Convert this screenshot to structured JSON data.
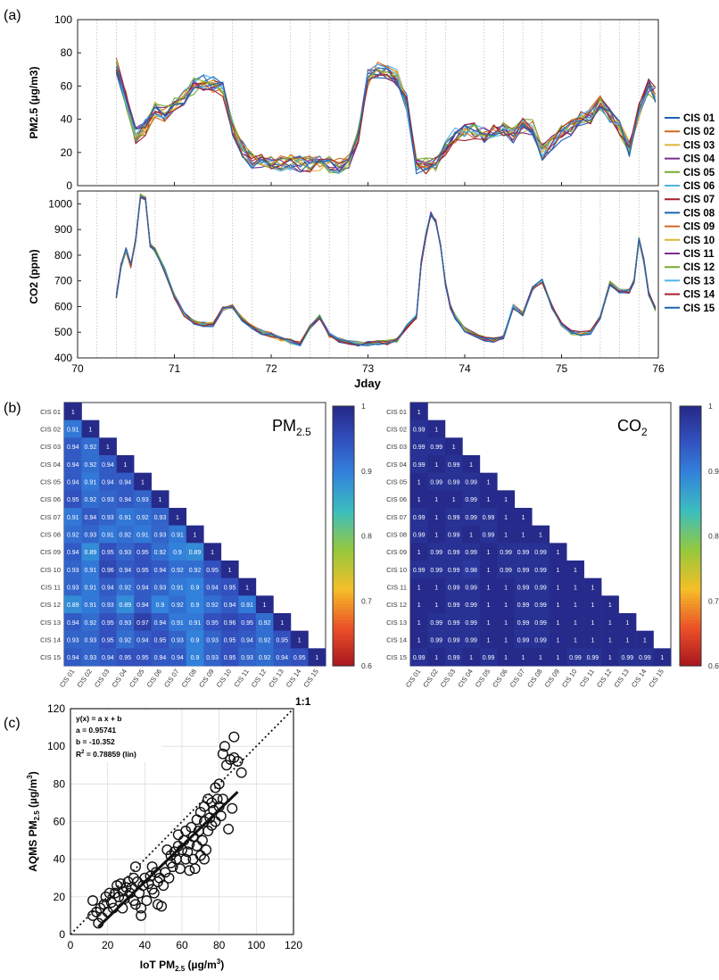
{
  "panels": {
    "a": "(a)",
    "b": "(b)",
    "c": "(c)"
  },
  "chart_data": [
    {
      "id": "pm25-timeseries",
      "type": "line",
      "ylabel": "PM2.5 (µg/m3)",
      "xlim": [
        70,
        76
      ],
      "ylim": [
        0,
        100
      ],
      "xticks": [
        70,
        71,
        72,
        73,
        74,
        75,
        76
      ],
      "yticks": [
        0,
        20,
        40,
        60,
        80,
        100
      ],
      "x": [
        70.4,
        70.5,
        70.6,
        70.7,
        70.8,
        70.9,
        71.0,
        71.1,
        71.2,
        71.3,
        71.4,
        71.5,
        71.6,
        71.7,
        71.8,
        71.9,
        72.0,
        72.1,
        72.2,
        72.3,
        72.4,
        72.5,
        72.6,
        72.7,
        72.8,
        72.9,
        73.0,
        73.1,
        73.2,
        73.3,
        73.4,
        73.5,
        73.6,
        73.7,
        73.8,
        73.9,
        74.0,
        74.1,
        74.2,
        74.3,
        74.4,
        74.5,
        74.6,
        74.7,
        74.8,
        74.9,
        75.0,
        75.1,
        75.2,
        75.3,
        75.4,
        75.5,
        75.6,
        75.7,
        75.8,
        75.9,
        75.97
      ],
      "base": [
        72,
        52,
        30,
        35,
        46,
        43,
        48,
        53,
        60,
        62,
        61,
        58,
        35,
        22,
        15,
        14,
        13,
        13,
        14,
        13,
        13,
        14,
        13,
        12,
        14,
        30,
        65,
        70,
        68,
        65,
        50,
        12,
        12,
        14,
        22,
        30,
        32,
        33,
        30,
        32,
        35,
        30,
        36,
        35,
        20,
        25,
        32,
        35,
        40,
        42,
        50,
        42,
        35,
        22,
        45,
        60,
        55
      ],
      "series_names": [
        "CIS 01",
        "CIS 02",
        "CIS 03",
        "CIS 04",
        "CIS 05",
        "CIS 06",
        "CIS 07",
        "CIS 08",
        "CIS 09",
        "CIS 10",
        "CIS 11",
        "CIS 12",
        "CIS 13",
        "CIS 14",
        "CIS 15"
      ]
    },
    {
      "id": "co2-timeseries",
      "type": "line",
      "ylabel": "CO2 (ppm)",
      "xlabel": "Jday",
      "xlim": [
        70,
        76
      ],
      "ylim": [
        400,
        1050
      ],
      "xticks": [
        70,
        71,
        72,
        73,
        74,
        75,
        76
      ],
      "yticks": [
        400,
        500,
        600,
        700,
        800,
        900,
        1000
      ],
      "x": [
        70.4,
        70.45,
        70.5,
        70.55,
        70.6,
        70.65,
        70.7,
        70.75,
        70.8,
        70.9,
        71.0,
        71.1,
        71.2,
        71.3,
        71.4,
        71.5,
        71.6,
        71.7,
        71.8,
        71.9,
        72.0,
        72.1,
        72.2,
        72.3,
        72.4,
        72.5,
        72.6,
        72.7,
        72.8,
        72.9,
        73.0,
        73.1,
        73.2,
        73.3,
        73.4,
        73.5,
        73.55,
        73.6,
        73.65,
        73.7,
        73.75,
        73.8,
        73.85,
        73.9,
        74.0,
        74.1,
        74.2,
        74.3,
        74.4,
        74.5,
        74.6,
        74.7,
        74.8,
        74.9,
        75.0,
        75.1,
        75.2,
        75.3,
        75.4,
        75.5,
        75.6,
        75.7,
        75.75,
        75.8,
        75.85,
        75.9,
        75.97
      ],
      "base": [
        640,
        760,
        820,
        760,
        860,
        1030,
        1020,
        840,
        820,
        740,
        640,
        570,
        540,
        530,
        530,
        590,
        600,
        550,
        520,
        500,
        490,
        475,
        465,
        455,
        520,
        560,
        490,
        470,
        460,
        455,
        455,
        460,
        460,
        470,
        520,
        560,
        770,
        880,
        960,
        930,
        840,
        690,
        600,
        560,
        510,
        490,
        475,
        470,
        480,
        600,
        570,
        670,
        700,
        600,
        530,
        500,
        495,
        500,
        560,
        690,
        660,
        660,
        700,
        860,
        780,
        650,
        590
      ],
      "series_names": [
        "CIS 01",
        "CIS 02",
        "CIS 03",
        "CIS 04",
        "CIS 05",
        "CIS 06",
        "CIS 07",
        "CIS 08",
        "CIS 09",
        "CIS 10",
        "CIS 11",
        "CIS 12",
        "CIS 13",
        "CIS 14",
        "CIS 15"
      ]
    },
    {
      "id": "pm25-correlation",
      "type": "heatmap",
      "title": "PM",
      "title_sub": "2.5",
      "labels": [
        "CIS 01",
        "CIS 02",
        "CIS 03",
        "CIS 04",
        "CIS 05",
        "CIS 06",
        "CIS 07",
        "CIS 08",
        "CIS 09",
        "CIS 10",
        "CIS 11",
        "CIS 12",
        "CIS 13",
        "CIS 14",
        "CIS 15"
      ],
      "rows": [
        [
          "1"
        ],
        [
          "0.91",
          "1"
        ],
        [
          "0.94",
          "0.92",
          "1"
        ],
        [
          "0.94",
          "0.92",
          "0.94",
          "1"
        ],
        [
          "0.94",
          "0.91",
          "0.94",
          "0.94",
          "1"
        ],
        [
          "0.95",
          "0.92",
          "0.93",
          "0.94",
          "0.93",
          "1"
        ],
        [
          "0.91",
          "0.94",
          "0.93",
          "0.91",
          "0.92",
          "0.93",
          "1"
        ],
        [
          "0.92",
          "0.93",
          "0.91",
          "0.92",
          "0.91",
          "0.93",
          "0.91",
          "1"
        ],
        [
          "0.94",
          "0.89",
          "0.95",
          "0.93",
          "0.95",
          "0.92",
          "0.9",
          "0.89",
          "1"
        ],
        [
          "0.93",
          "0.91",
          "0.96",
          "0.94",
          "0.95",
          "0.94",
          "0.92",
          "0.92",
          "0.95",
          "1"
        ],
        [
          "0.93",
          "0.91",
          "0.94",
          "0.92",
          "0.94",
          "0.93",
          "0.91",
          "0.9",
          "0.94",
          "0.95",
          "1"
        ],
        [
          "0.89",
          "0.91",
          "0.93",
          "0.89",
          "0.94",
          "0.9",
          "0.92",
          "0.9",
          "0.92",
          "0.94",
          "0.91",
          "1"
        ],
        [
          "0.94",
          "0.92",
          "0.95",
          "0.93",
          "0.97",
          "0.94",
          "0.91",
          "0.91",
          "0.95",
          "0.96",
          "0.95",
          "0.92",
          "1"
        ],
        [
          "0.93",
          "0.93",
          "0.95",
          "0.92",
          "0.94",
          "0.95",
          "0.93",
          "0.9",
          "0.93",
          "0.95",
          "0.94",
          "0.92",
          "0.95",
          "1"
        ],
        [
          "0.94",
          "0.93",
          "0.94",
          "0.95",
          "0.95",
          "0.94",
          "0.94",
          "0.9",
          "0.93",
          "0.95",
          "0.93",
          "0.92",
          "0.94",
          "0.95",
          "1"
        ]
      ],
      "colorbar_ticks": [
        "1",
        "0.9",
        "0.8",
        "0.7",
        "0.6"
      ],
      "vmin": 0.6,
      "vmax": 1
    },
    {
      "id": "co2-correlation",
      "type": "heatmap",
      "title": "CO",
      "title_sub": "2",
      "labels": [
        "CIS 01",
        "CIS 02",
        "CIS 03",
        "CIS 04",
        "CIS 05",
        "CIS 06",
        "CIS 07",
        "CIS 08",
        "CIS 09",
        "CIS 10",
        "CIS 11",
        "CIS 12",
        "CIS 13",
        "CIS 14",
        "CIS 15"
      ],
      "rows": [
        [
          "1"
        ],
        [
          "0.99",
          "1"
        ],
        [
          "0.99",
          "0.99",
          "1"
        ],
        [
          "0.99",
          "1",
          "0.99",
          "1"
        ],
        [
          "1",
          "0.99",
          "0.99",
          "0.99",
          "1"
        ],
        [
          "1",
          "1",
          "1",
          "0.99",
          "1",
          "1"
        ],
        [
          "0.99",
          "1",
          "0.99",
          "0.99",
          "0.99",
          "1",
          "1"
        ],
        [
          "0.99",
          "1",
          "0.99",
          "1",
          "0.99",
          "1",
          "1",
          "1"
        ],
        [
          "1",
          "0.99",
          "0.99",
          "0.99",
          "1",
          "0.99",
          "0.99",
          "0.99",
          "1"
        ],
        [
          "0.99",
          "0.99",
          "0.99",
          "0.98",
          "1",
          "0.99",
          "0.99",
          "0.99",
          "1",
          "1"
        ],
        [
          "1",
          "1",
          "0.99",
          "0.99",
          "1",
          "1",
          "0.99",
          "0.99",
          "1",
          "1",
          "1"
        ],
        [
          "1",
          "1",
          "0.99",
          "0.99",
          "1",
          "1",
          "0.99",
          "0.99",
          "1",
          "1",
          "1",
          "1"
        ],
        [
          "1",
          "0.99",
          "0.99",
          "0.99",
          "1",
          "1",
          "0.99",
          "0.99",
          "1",
          "1",
          "1",
          "1",
          "1"
        ],
        [
          "1",
          "0.99",
          "0.99",
          "0.99",
          "1",
          "1",
          "0.99",
          "0.99",
          "1",
          "1",
          "1",
          "1",
          "1",
          "1"
        ],
        [
          "0.99",
          "1",
          "0.99",
          "1",
          "0.99",
          "1",
          "1",
          "1",
          "1",
          "0.99",
          "0.99",
          "1",
          "0.99",
          "0.99",
          "1"
        ]
      ],
      "colorbar_ticks": [
        "1",
        "0.9",
        "0.8",
        "0.7",
        "0.6"
      ],
      "vmin": 0.6,
      "vmax": 1
    },
    {
      "id": "pm25-scatter",
      "type": "scatter",
      "xlabel": "IoT PM",
      "xlabel_sub": "2.5",
      "xlabel_unit": " (µg/m",
      "ylabel": "AQMS PM",
      "ylabel_sub": "2.5",
      "ylabel_unit": " (µg/m",
      "unit_sup": "3",
      "xlim": [
        0,
        120
      ],
      "ylim": [
        0,
        120
      ],
      "xticks": [
        0,
        20,
        40,
        60,
        80,
        100,
        120
      ],
      "yticks": [
        0,
        20,
        40,
        60,
        80,
        100,
        120
      ],
      "one_to_one_label": "1:1",
      "fit": {
        "a": 0.95741,
        "b": -10.352,
        "r2": 0.78859
      },
      "fit_range": [
        15,
        90
      ],
      "annotation": [
        "y(x) = a x + b",
        "a = 0.95741",
        "b = -10.352",
        "R",
        "2",
        " = 0.78859  (lin)"
      ],
      "points": [
        [
          12,
          10
        ],
        [
          12,
          18
        ],
        [
          14,
          12
        ],
        [
          15,
          6
        ],
        [
          16,
          14
        ],
        [
          17,
          9
        ],
        [
          18,
          16
        ],
        [
          19,
          20
        ],
        [
          20,
          12
        ],
        [
          21,
          22
        ],
        [
          22,
          17
        ],
        [
          23,
          14
        ],
        [
          24,
          22
        ],
        [
          25,
          26
        ],
        [
          26,
          20
        ],
        [
          27,
          27
        ],
        [
          28,
          23
        ],
        [
          29,
          19
        ],
        [
          30,
          25
        ],
        [
          31,
          28
        ],
        [
          32,
          22
        ],
        [
          33,
          25
        ],
        [
          34,
          30
        ],
        [
          35,
          36
        ],
        [
          35,
          16
        ],
        [
          36,
          28
        ],
        [
          37,
          22
        ],
        [
          38,
          14
        ],
        [
          38,
          10
        ],
        [
          39,
          26
        ],
        [
          40,
          30
        ],
        [
          41,
          18
        ],
        [
          42,
          27
        ],
        [
          43,
          31
        ],
        [
          44,
          24
        ],
        [
          45,
          22
        ],
        [
          46,
          33
        ],
        [
          47,
          16
        ],
        [
          47,
          28
        ],
        [
          48,
          30
        ],
        [
          49,
          15
        ],
        [
          50,
          26
        ],
        [
          51,
          33
        ],
        [
          52,
          45
        ],
        [
          53,
          30
        ],
        [
          54,
          42
        ],
        [
          55,
          36
        ],
        [
          56,
          44
        ],
        [
          57,
          40
        ],
        [
          58,
          47
        ],
        [
          58,
          53
        ],
        [
          59,
          35
        ],
        [
          60,
          45
        ],
        [
          61,
          50
        ],
        [
          62,
          40
        ],
        [
          62,
          55
        ],
        [
          63,
          44
        ],
        [
          64,
          48
        ],
        [
          65,
          57
        ],
        [
          66,
          40
        ],
        [
          66,
          52
        ],
        [
          67,
          35
        ],
        [
          68,
          47
        ],
        [
          68,
          61
        ],
        [
          69,
          55
        ],
        [
          70,
          42
        ],
        [
          70,
          65
        ],
        [
          71,
          50
        ],
        [
          72,
          60
        ],
        [
          72,
          68
        ],
        [
          73,
          45
        ],
        [
          74,
          55
        ],
        [
          74,
          72
        ],
        [
          75,
          62
        ],
        [
          76,
          58
        ],
        [
          76,
          70
        ],
        [
          77,
          66
        ],
        [
          78,
          60
        ],
        [
          78,
          78
        ],
        [
          79,
          72
        ],
        [
          80,
          68
        ],
        [
          80,
          80
        ],
        [
          81,
          63
        ],
        [
          82,
          72
        ],
        [
          82,
          96
        ],
        [
          83,
          100
        ],
        [
          84,
          90
        ],
        [
          85,
          56
        ],
        [
          86,
          93
        ],
        [
          87,
          67
        ],
        [
          88,
          105
        ],
        [
          88,
          94
        ],
        [
          90,
          92
        ],
        [
          92,
          86
        ],
        [
          34,
          18
        ],
        [
          44,
          36
        ],
        [
          54,
          38
        ],
        [
          64,
          34
        ],
        [
          72,
          40
        ],
        [
          28,
          14
        ]
      ]
    }
  ]
}
